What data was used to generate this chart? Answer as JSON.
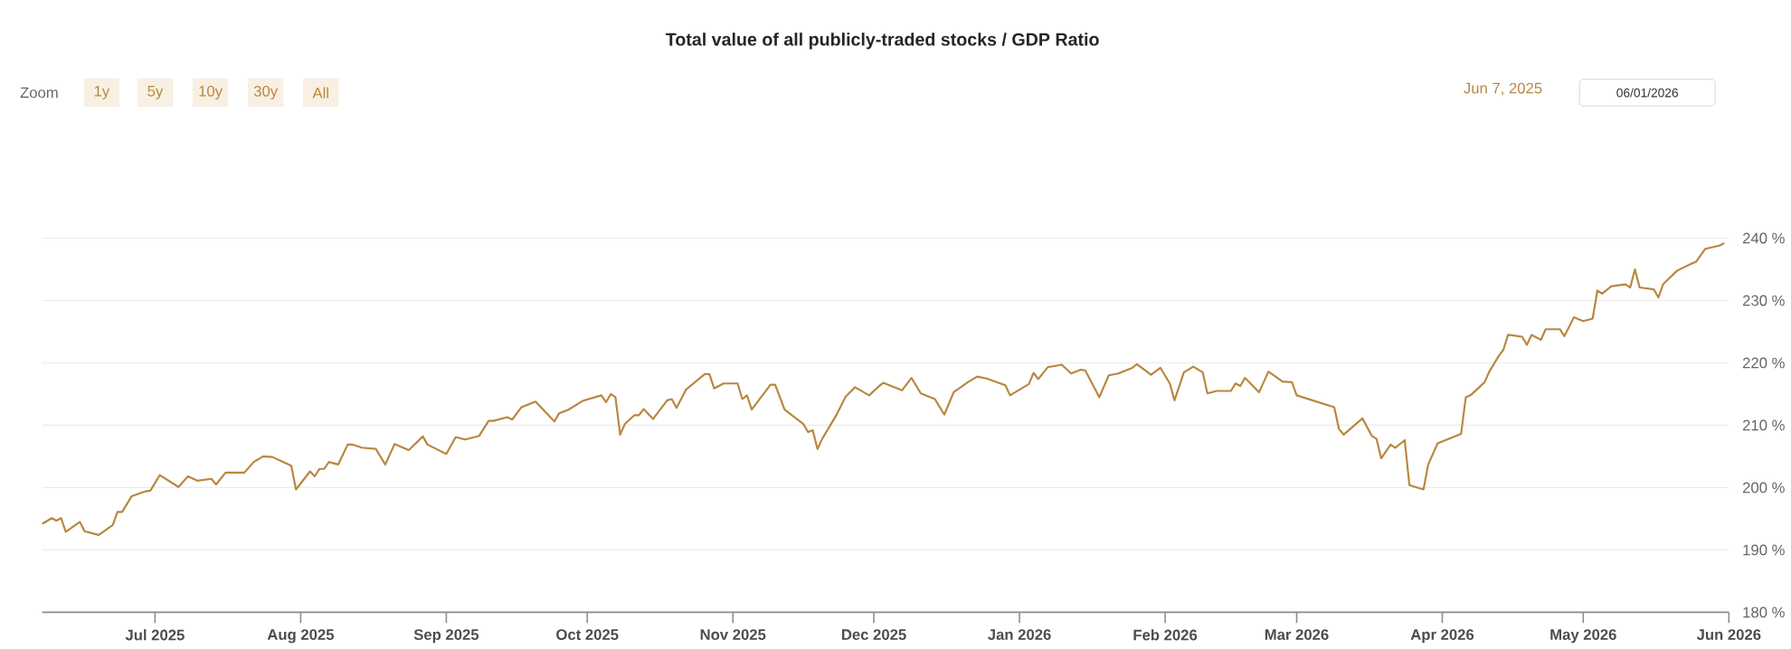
{
  "chart_data": {
    "type": "line",
    "title": "Total value of all publicly-traded stocks / GDP Ratio",
    "annotations": [
      "Zoom",
      "1y",
      "5y",
      "10y",
      "30y",
      "All",
      "Jun 7, 2025",
      "06/01/2026"
    ],
    "color": "#b8873f",
    "grid": "y",
    "xlim": [
      "2025-06-07",
      "2026-06-01"
    ],
    "ylim": [
      180,
      240
    ],
    "xticks": [
      {
        "value": "2025-07-01",
        "label": "Jul 2025"
      },
      {
        "value": "2025-08-01",
        "label": "Aug 2025"
      },
      {
        "value": "2025-09-01",
        "label": "Sep 2025"
      },
      {
        "value": "2025-10-01",
        "label": "Oct 2025"
      },
      {
        "value": "2025-11-01",
        "label": "Nov 2025"
      },
      {
        "value": "2025-12-01",
        "label": "Dec 2025"
      },
      {
        "value": "2026-01-01",
        "label": "Jan 2026"
      },
      {
        "value": "2026-02-01",
        "label": "Feb 2026"
      },
      {
        "value": "2026-03-01",
        "label": "Mar 2026"
      },
      {
        "value": "2026-04-01",
        "label": "Apr 2026"
      },
      {
        "value": "2026-05-01",
        "label": "May 2026"
      },
      {
        "value": "2026-06-01",
        "label": "Jun 2026"
      }
    ],
    "yticks": [
      {
        "value": 180,
        "label": "180 %"
      },
      {
        "value": 190,
        "label": "190 %"
      },
      {
        "value": 200,
        "label": "200 %"
      },
      {
        "value": 210,
        "label": "210 %"
      },
      {
        "value": 220,
        "label": "220 %"
      },
      {
        "value": 230,
        "label": "230 %"
      },
      {
        "value": 240,
        "label": "240 %"
      }
    ],
    "x": [
      "2025-06-07",
      "2025-06-09",
      "2025-06-10",
      "2025-06-11",
      "2025-06-12",
      "2025-06-15",
      "2025-06-16",
      "2025-06-19",
      "2025-06-22",
      "2025-06-23",
      "2025-06-24",
      "2025-06-26",
      "2025-06-29",
      "2025-06-30",
      "2025-07-02",
      "2025-07-06",
      "2025-07-08",
      "2025-07-10",
      "2025-07-13",
      "2025-07-14",
      "2025-07-16",
      "2025-07-20",
      "2025-07-22",
      "2025-07-24",
      "2025-07-26",
      "2025-07-30",
      "2025-07-31",
      "2025-08-03",
      "2025-08-04",
      "2025-08-05",
      "2025-08-06",
      "2025-08-07",
      "2025-08-09",
      "2025-08-11",
      "2025-08-12",
      "2025-08-14",
      "2025-08-17",
      "2025-08-19",
      "2025-08-21",
      "2025-08-24",
      "2025-08-27",
      "2025-08-28",
      "2025-09-01",
      "2025-09-03",
      "2025-09-05",
      "2025-09-08",
      "2025-09-10",
      "2025-09-11",
      "2025-09-14",
      "2025-09-15",
      "2025-09-17",
      "2025-09-20",
      "2025-09-24",
      "2025-09-25",
      "2025-09-27",
      "2025-09-30",
      "2025-10-04",
      "2025-10-05",
      "2025-10-06",
      "2025-10-07",
      "2025-10-08",
      "2025-10-09",
      "2025-10-11",
      "2025-10-12",
      "2025-10-13",
      "2025-10-15",
      "2025-10-18",
      "2025-10-19",
      "2025-10-20",
      "2025-10-22",
      "2025-10-26",
      "2025-10-27",
      "2025-10-28",
      "2025-10-30",
      "2025-11-02",
      "2025-11-03",
      "2025-11-04",
      "2025-11-05",
      "2025-11-09",
      "2025-11-10",
      "2025-11-12",
      "2025-11-16",
      "2025-11-17",
      "2025-11-18",
      "2025-11-19",
      "2025-11-20",
      "2025-11-23",
      "2025-11-25",
      "2025-11-27",
      "2025-11-30",
      "2025-12-02",
      "2025-12-03",
      "2025-12-07",
      "2025-12-09",
      "2025-12-11",
      "2025-12-14",
      "2025-12-16",
      "2025-12-18",
      "2025-12-21",
      "2025-12-23",
      "2025-12-25",
      "2025-12-29",
      "2025-12-30",
      "2026-01-03",
      "2026-01-04",
      "2026-01-05",
      "2026-01-07",
      "2026-01-10",
      "2026-01-12",
      "2026-01-14",
      "2026-01-15",
      "2026-01-18",
      "2026-01-20",
      "2026-01-22",
      "2026-01-25",
      "2026-01-26",
      "2026-01-29",
      "2026-01-31",
      "2026-02-02",
      "2026-02-03",
      "2026-02-05",
      "2026-02-07",
      "2026-02-09",
      "2026-02-10",
      "2026-02-12",
      "2026-02-15",
      "2026-02-16",
      "2026-02-17",
      "2026-02-18",
      "2026-02-21",
      "2026-02-23",
      "2026-02-26",
      "2026-02-28",
      "2026-03-01",
      "2026-03-09",
      "2026-03-10",
      "2026-03-11",
      "2026-03-15",
      "2026-03-17",
      "2026-03-18",
      "2026-03-19",
      "2026-03-21",
      "2026-03-22",
      "2026-03-24",
      "2026-03-25",
      "2026-03-28",
      "2026-03-29",
      "2026-03-31",
      "2026-04-05",
      "2026-04-06",
      "2026-04-07",
      "2026-04-10",
      "2026-04-11",
      "2026-04-13",
      "2026-04-14",
      "2026-04-15",
      "2026-04-18",
      "2026-04-19",
      "2026-04-20",
      "2026-04-22",
      "2026-04-23",
      "2026-04-26",
      "2026-04-27",
      "2026-04-29",
      "2026-05-01",
      "2026-05-03",
      "2026-05-04",
      "2026-05-05",
      "2026-05-07",
      "2026-05-10",
      "2026-05-11",
      "2026-05-12",
      "2026-05-13",
      "2026-05-16",
      "2026-05-17",
      "2026-05-18",
      "2026-05-21",
      "2026-05-24",
      "2026-05-25",
      "2026-05-27",
      "2026-05-30",
      "2026-05-31"
    ],
    "values": [
      194.2,
      195.1,
      194.7,
      195.1,
      192.9,
      194.5,
      193.0,
      192.4,
      194.0,
      196.1,
      196.1,
      198.6,
      199.4,
      199.5,
      202.0,
      200.1,
      201.8,
      201.1,
      201.4,
      200.5,
      202.4,
      202.4,
      204.1,
      205.0,
      204.9,
      203.5,
      199.7,
      202.6,
      201.8,
      203.0,
      203.0,
      204.1,
      203.7,
      206.9,
      206.9,
      206.4,
      206.2,
      203.7,
      207.0,
      206.0,
      208.2,
      206.9,
      205.4,
      208.1,
      207.7,
      208.3,
      210.7,
      210.7,
      211.3,
      210.9,
      212.9,
      213.8,
      210.6,
      211.9,
      212.5,
      213.9,
      214.8,
      213.7,
      215.0,
      214.5,
      208.5,
      210.2,
      211.6,
      211.6,
      212.6,
      211.0,
      214.0,
      214.2,
      212.8,
      215.7,
      218.2,
      218.2,
      215.9,
      216.7,
      216.7,
      214.2,
      214.8,
      212.5,
      216.5,
      216.5,
      212.5,
      210.2,
      208.9,
      209.2,
      206.2,
      207.8,
      211.6,
      214.6,
      216.1,
      214.8,
      216.2,
      216.8,
      215.6,
      217.6,
      215.1,
      214.2,
      211.7,
      215.3,
      216.9,
      217.8,
      217.5,
      216.4,
      214.8,
      216.6,
      218.4,
      217.4,
      219.3,
      219.7,
      218.3,
      218.9,
      218.8,
      214.5,
      218.0,
      218.3,
      219.2,
      219.8,
      218.1,
      219.2,
      216.7,
      214.0,
      218.5,
      219.4,
      218.5,
      215.1,
      215.5,
      215.5,
      216.7,
      216.3,
      217.6,
      215.3,
      218.6,
      217.0,
      216.9,
      214.8,
      212.9,
      209.4,
      208.5,
      211.1,
      208.3,
      207.8,
      204.7,
      206.9,
      206.4,
      207.6,
      200.4,
      199.7,
      203.7,
      207.1,
      208.6,
      214.5,
      214.8,
      216.9,
      218.6,
      221.1,
      222.1,
      224.5,
      224.2,
      222.9,
      224.5,
      223.7,
      225.4,
      225.4,
      224.3,
      227.3,
      226.7,
      227.1,
      231.6,
      231.1,
      232.3,
      232.6,
      232.1,
      235.0,
      232.1,
      231.8,
      230.5,
      232.6,
      234.8,
      235.9,
      236.2,
      238.3,
      238.8,
      239.2
    ]
  }
}
